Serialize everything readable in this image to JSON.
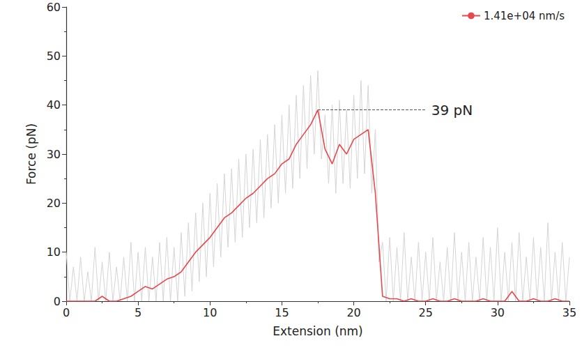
{
  "chart_data": {
    "type": "line",
    "x_label": "Extension (nm)",
    "y_label": "Force (pN)",
    "xlim": [
      0,
      35
    ],
    "xticks": [
      0,
      5,
      10,
      15,
      20,
      25,
      30,
      35
    ],
    "ylim": [
      0,
      60
    ],
    "yticks": [
      0,
      10,
      20,
      30,
      40,
      50,
      60
    ],
    "grid": false,
    "legend": "upper right",
    "series": [
      {
        "color": "#d4d4d4",
        "x": [
          0,
          0.25,
          0.5,
          0.75,
          1,
          1.25,
          1.5,
          1.75,
          2,
          2.25,
          2.5,
          2.75,
          3,
          3.25,
          3.5,
          3.75,
          4,
          4.25,
          4.5,
          4.75,
          5,
          5.25,
          5.5,
          5.75,
          6,
          6.25,
          6.5,
          6.75,
          7,
          7.25,
          7.5,
          7.75,
          8,
          8.25,
          8.5,
          8.75,
          9,
          9.25,
          9.5,
          9.75,
          10,
          10.25,
          10.5,
          10.75,
          11,
          11.25,
          11.5,
          11.75,
          12,
          12.25,
          12.5,
          12.75,
          13,
          13.25,
          13.5,
          13.75,
          14,
          14.25,
          14.5,
          14.75,
          15,
          15.25,
          15.5,
          15.75,
          16,
          16.25,
          16.5,
          16.75,
          17,
          17.25,
          17.5,
          17.75,
          18,
          18.25,
          18.5,
          18.75,
          19,
          19.25,
          19.5,
          19.75,
          20,
          20.25,
          20.5,
          20.75,
          21,
          21.25,
          21.5,
          21.75,
          22,
          22.25,
          22.5,
          22.75,
          23,
          23.25,
          23.5,
          23.75,
          24,
          24.25,
          24.5,
          24.75,
          25,
          25.25,
          25.5,
          25.75,
          26,
          26.25,
          26.5,
          26.75,
          27,
          27.25,
          27.5,
          27.75,
          28,
          28.25,
          28.5,
          28.75,
          29,
          29.25,
          29.5,
          29.75,
          30,
          30.25,
          30.5,
          30.75,
          31,
          31.25,
          31.5,
          31.75,
          32,
          32.25,
          32.5,
          32.75,
          33,
          33.25,
          33.5,
          33.75,
          34,
          34.25,
          34.5,
          34.75,
          35
        ],
        "values": [
          10,
          0,
          7,
          0,
          9,
          0,
          6,
          0,
          11,
          0,
          8,
          0,
          10,
          0,
          7,
          0,
          9,
          0,
          12,
          0,
          10,
          0,
          11,
          0,
          9,
          0,
          12,
          0,
          13,
          0,
          11,
          0,
          14,
          1,
          16,
          2,
          18,
          4,
          20,
          5,
          22,
          7,
          24,
          9,
          26,
          11,
          27,
          12,
          29,
          13,
          30,
          15,
          31,
          16,
          33,
          17,
          34,
          19,
          36,
          20,
          38,
          22,
          40,
          23,
          42,
          25,
          44,
          27,
          46,
          30,
          47,
          29,
          38,
          24,
          40,
          22,
          41,
          24,
          39,
          23,
          42,
          25,
          45,
          26,
          44,
          22,
          35,
          8,
          12,
          0,
          13,
          0,
          11,
          0,
          14,
          0,
          9,
          0,
          12,
          0,
          10,
          0,
          13,
          0,
          8,
          0,
          11,
          0,
          14,
          0,
          10,
          0,
          12,
          0,
          9,
          0,
          13,
          0,
          11,
          0,
          15,
          0,
          10,
          0,
          12,
          0,
          14,
          0,
          9,
          0,
          13,
          0,
          11,
          0,
          16,
          0,
          10,
          0,
          12,
          0,
          9
        ]
      },
      {
        "name": "1.41e+04 nm/s",
        "color": "#e8474c",
        "x": [
          0,
          0.5,
          1,
          1.5,
          2,
          2.5,
          3,
          3.5,
          4,
          4.5,
          5,
          5.5,
          6,
          6.5,
          7,
          7.5,
          8,
          8.5,
          9,
          9.5,
          10,
          10.5,
          11,
          11.5,
          12,
          12.5,
          13,
          13.5,
          14,
          14.5,
          15,
          15.5,
          16,
          16.5,
          17,
          17.5,
          18,
          18.5,
          19,
          19.5,
          20,
          20.5,
          21,
          21.5,
          22,
          22.5,
          23,
          23.5,
          24,
          24.5,
          25,
          25.5,
          26,
          26.5,
          27,
          27.5,
          28,
          28.5,
          29,
          29.5,
          30,
          30.5,
          31,
          31.5,
          32,
          32.5,
          33,
          33.5,
          34,
          34.5,
          35
        ],
        "values": [
          0,
          0,
          0,
          0,
          0,
          1,
          0,
          0,
          0.5,
          1,
          2,
          3,
          2.5,
          3.5,
          4.5,
          5,
          6,
          8,
          10,
          11.5,
          13,
          15,
          17,
          18,
          19.5,
          21,
          22,
          23.5,
          25,
          26,
          28,
          29,
          32,
          34,
          36,
          39,
          31,
          28,
          32,
          30,
          33,
          34,
          35,
          22,
          1,
          0.5,
          0.5,
          0,
          0.5,
          0,
          0,
          0.5,
          0,
          0,
          0.5,
          0,
          0,
          0,
          0.5,
          0,
          0,
          0,
          2,
          0,
          0,
          0.5,
          0,
          0,
          0.5,
          0,
          0
        ]
      }
    ],
    "annotations": [
      {
        "text": "39 pN",
        "x": [
          17.5,
          25
        ],
        "y": 39,
        "line_style": "dashed"
      }
    ]
  }
}
